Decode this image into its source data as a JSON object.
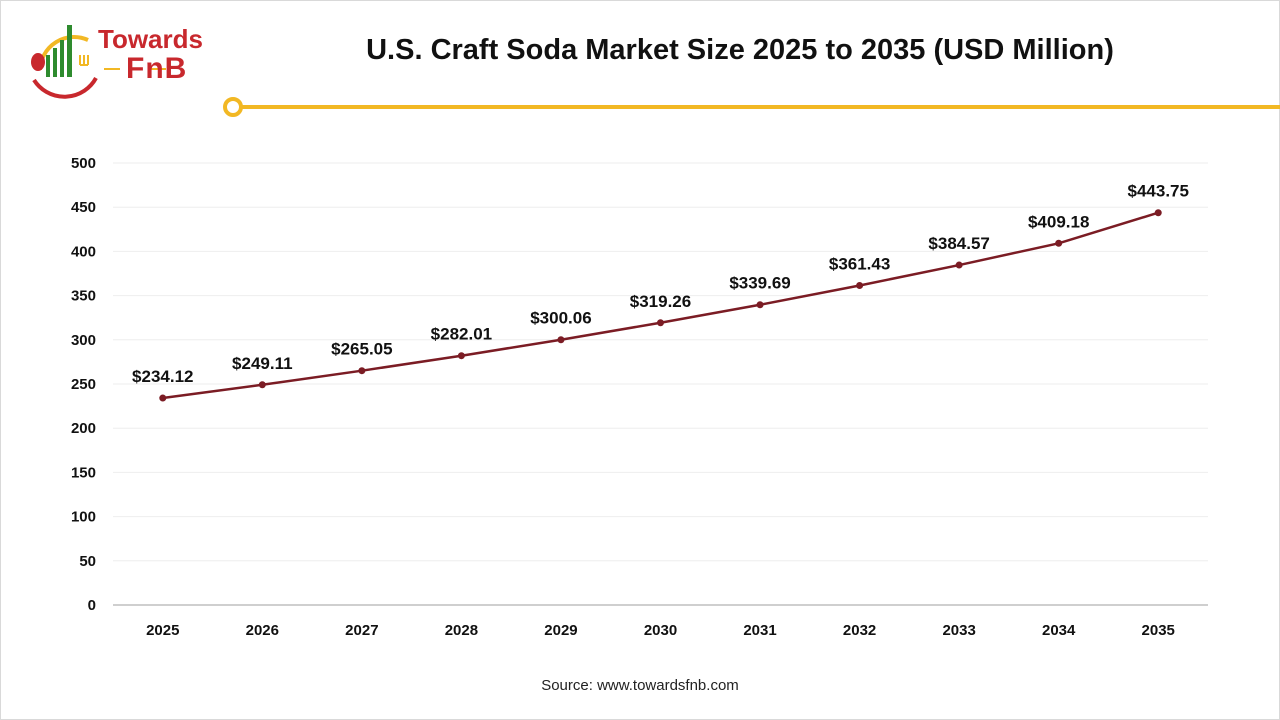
{
  "logo": {
    "line1": "Towards",
    "line2": "FnB"
  },
  "colors": {
    "line": "#7b1c24",
    "accent": "#f2b824",
    "brand_red": "#c8282d",
    "brand_green": "#2e8b2e"
  },
  "source": "Source: www.towardsfnb.com",
  "chart_data": {
    "type": "line",
    "title": "U.S. Craft Soda Market Size 2025 to 2035 (USD Million)",
    "categories": [
      "2025",
      "2026",
      "2027",
      "2028",
      "2029",
      "2030",
      "2031",
      "2032",
      "2033",
      "2034",
      "2035"
    ],
    "values": [
      234.12,
      249.11,
      265.05,
      282.01,
      300.06,
      319.26,
      339.69,
      361.43,
      384.57,
      409.18,
      443.75
    ],
    "data_labels": [
      "$234.12",
      "$249.11",
      "$265.05",
      "$282.01",
      "$300.06",
      "$319.26",
      "$339.69",
      "$361.43",
      "$384.57",
      "$409.18",
      "$443.75"
    ],
    "ylim": [
      0,
      500
    ],
    "yticks": [
      "0",
      "50",
      "100",
      "150",
      "200",
      "250",
      "300",
      "350",
      "400",
      "450",
      "500"
    ],
    "grid": true,
    "legend": "none"
  }
}
